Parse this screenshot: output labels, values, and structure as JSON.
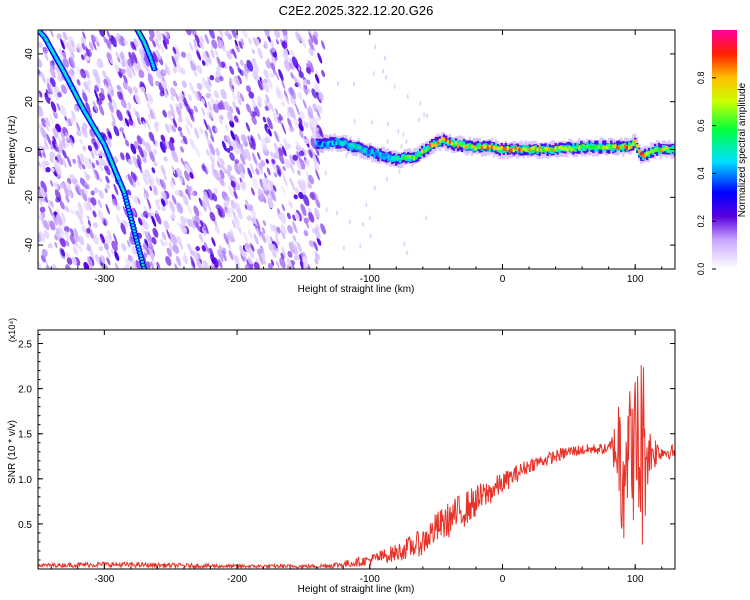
{
  "figure_title": "C2E2.2025.322.12.20.G26",
  "chart_data": [
    {
      "type": "heatmap",
      "xlabel": "Height of straight line (km)",
      "ylabel": "Frequency (Hz)",
      "xlim": [
        -350,
        130
      ],
      "ylim": [
        -50,
        50
      ],
      "xticks": [
        -300,
        -200,
        -100,
        0,
        100
      ],
      "yticks": [
        -40,
        -20,
        0,
        20,
        40
      ],
      "tick_labels_x": [
        "-300",
        "-200",
        "-100",
        "0",
        "100"
      ],
      "tick_labels_y": [
        "-40",
        "-20",
        "0",
        "20",
        "40"
      ],
      "colorbar": {
        "label": "Normalized spectral amplitude",
        "range": [
          0.0,
          1.0
        ],
        "ticks": [
          0.0,
          0.2,
          0.4,
          0.6,
          0.8
        ],
        "tick_labels": [
          "0.0",
          "0.2",
          "0.4",
          "0.6",
          "0.8"
        ]
      },
      "noise_region_x": [
        -350,
        -135
      ],
      "ridge_line": {
        "name": "direct signal",
        "x": [
          -350,
          -345,
          -330,
          -315,
          -300,
          -285,
          -270
        ],
        "y": [
          50,
          47,
          32,
          16,
          2,
          -18,
          -50
        ]
      },
      "ridge_line_2": {
        "name": "secondary streak",
        "x": [
          -275,
          -270,
          -265,
          -262
        ],
        "y": [
          50,
          45,
          38,
          33
        ]
      },
      "reflection_band": {
        "name": "reflected signal",
        "x": [
          -140,
          -125,
          -110,
          -95,
          -80,
          -65,
          -55,
          -45,
          -35,
          -20,
          -10,
          0,
          20,
          40,
          60,
          80,
          95,
          100,
          105,
          115,
          130
        ],
        "y": [
          2,
          3,
          1,
          -2,
          -4,
          -3,
          1,
          4,
          2,
          1,
          1,
          0,
          0,
          0,
          1,
          1,
          1,
          3,
          -3,
          0,
          0
        ],
        "amplitude": [
          0.45,
          0.5,
          0.55,
          0.5,
          0.6,
          0.7,
          0.85,
          0.9,
          0.8,
          0.8,
          0.9,
          0.9,
          0.85,
          0.8,
          0.75,
          0.8,
          0.9,
          0.95,
          0.9,
          0.85,
          0.7
        ]
      }
    },
    {
      "type": "line",
      "xlabel": "Height of straight line (km)",
      "ylabel": "SNR (10 * v/v)",
      "y_scale_label": "(x10⁴)",
      "xlim": [
        -350,
        130
      ],
      "ylim": [
        0,
        2.65
      ],
      "xticks": [
        -300,
        -200,
        -100,
        0,
        100
      ],
      "yticks": [
        0.5,
        1.0,
        1.5,
        2.0,
        2.5
      ],
      "tick_labels_x": [
        "-300",
        "-200",
        "-100",
        "0",
        "100"
      ],
      "tick_labels_y": [
        "0.5",
        "1.0",
        "1.5",
        "2.0",
        "2.5"
      ],
      "series": [
        {
          "name": "SNR",
          "color": "#e8332a",
          "envelope_x": [
            -350,
            -300,
            -200,
            -140,
            -120,
            -100,
            -80,
            -60,
            -50,
            -40,
            -30,
            -20,
            -10,
            0,
            10,
            20,
            30,
            40,
            50,
            60,
            70,
            80,
            85,
            90,
            95,
            100,
            105,
            110,
            120,
            130
          ],
          "envelope_y": [
            0.04,
            0.05,
            0.03,
            0.03,
            0.05,
            0.1,
            0.18,
            0.3,
            0.45,
            0.55,
            0.65,
            0.75,
            0.85,
            0.95,
            1.05,
            1.15,
            1.2,
            1.25,
            1.3,
            1.32,
            1.33,
            1.33,
            1.35,
            1.3,
            1.4,
            1.3,
            1.35,
            1.3,
            1.3,
            1.3
          ],
          "noise_amp": [
            0.02,
            0.03,
            0.02,
            0.02,
            0.04,
            0.06,
            0.1,
            0.15,
            0.18,
            0.2,
            0.2,
            0.18,
            0.15,
            0.12,
            0.1,
            0.08,
            0.07,
            0.07,
            0.07,
            0.06,
            0.06,
            0.06,
            0.3,
            1.2,
            0.6,
            0.9,
            1.3,
            0.3,
            0.08,
            0.08
          ]
        }
      ]
    }
  ],
  "colors": {
    "snr_line": "#e8332a",
    "background": "#ffffff",
    "axis": "#000000"
  }
}
